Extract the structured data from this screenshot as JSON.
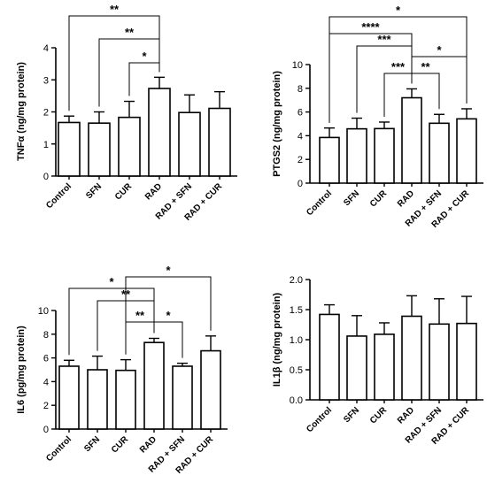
{
  "chart_data": [
    {
      "type": "bar",
      "ylabel": "TNFα (ng/mg protein)",
      "categories": [
        "Control",
        "SFN",
        "CUR",
        "RAD",
        "RAD + SFN",
        "RAD + CUR"
      ],
      "values": [
        1.67,
        1.65,
        1.83,
        2.73,
        1.98,
        2.11
      ],
      "errors": [
        0.2,
        0.35,
        0.5,
        0.35,
        0.55,
        0.52
      ],
      "ylim": [
        0,
        4
      ],
      "yticks": [
        "0",
        "1",
        "2",
        "3",
        "4"
      ],
      "comparisons": [
        {
          "from": "Control",
          "to": "RAD",
          "label": "**"
        },
        {
          "from": "SFN",
          "to": "RAD",
          "label": "**"
        },
        {
          "from": "CUR",
          "to": "RAD",
          "label": "*"
        }
      ]
    },
    {
      "type": "bar",
      "ylabel": "PTGS2 (ng/mg protein)",
      "categories": [
        "Control",
        "SFN",
        "CUR",
        "RAD",
        "RAD + SFN",
        "RAD + CUR"
      ],
      "values": [
        3.85,
        4.58,
        4.6,
        7.2,
        5.05,
        5.42
      ],
      "errors": [
        0.8,
        0.9,
        0.55,
        0.75,
        0.75,
        0.85
      ],
      "ylim": [
        0,
        10
      ],
      "yticks": [
        "0",
        "2",
        "4",
        "6",
        "8",
        "10"
      ],
      "comparisons": [
        {
          "from": "Control",
          "to": "RAD + CUR",
          "label": "*"
        },
        {
          "from": "Control",
          "to": "RAD",
          "label": "****"
        },
        {
          "from": "SFN",
          "to": "RAD",
          "label": "***"
        },
        {
          "from": "RAD",
          "to": "RAD + CUR",
          "label": "*"
        },
        {
          "from": "CUR",
          "to": "RAD",
          "label": "***"
        },
        {
          "from": "RAD",
          "to": "RAD + SFN",
          "label": "**"
        }
      ]
    },
    {
      "type": "bar",
      "ylabel": "IL6 (pg/mg protein)",
      "categories": [
        "Control",
        "SFN",
        "CUR",
        "RAD",
        "RAD + SFN",
        "RAD + CUR"
      ],
      "values": [
        5.3,
        5.0,
        4.95,
        7.3,
        5.3,
        6.6
      ],
      "errors": [
        0.5,
        1.15,
        0.9,
        0.35,
        0.25,
        1.25
      ],
      "ylim": [
        0,
        10
      ],
      "yticks": [
        "0",
        "2",
        "4",
        "6",
        "8",
        "10"
      ],
      "comparisons": [
        {
          "from": "CUR",
          "to": "RAD + CUR",
          "label": "*"
        },
        {
          "from": "Control",
          "to": "RAD",
          "label": "*"
        },
        {
          "from": "SFN",
          "to": "RAD",
          "label": "**"
        },
        {
          "from": "CUR",
          "to": "RAD",
          "label": "**"
        },
        {
          "from": "RAD",
          "to": "RAD + SFN",
          "label": "*"
        }
      ]
    },
    {
      "type": "bar",
      "ylabel": "IL1β (ng/mg protein)",
      "categories": [
        "Control",
        "SFN",
        "CUR",
        "RAD",
        "RAD + SFN",
        "RAD + CUR"
      ],
      "values": [
        1.42,
        1.06,
        1.09,
        1.39,
        1.26,
        1.27
      ],
      "errors": [
        0.16,
        0.34,
        0.19,
        0.34,
        0.42,
        0.45
      ],
      "ylim": [
        0,
        2.0
      ],
      "yticks": [
        "0.0",
        "0.5",
        "1.0",
        "1.5",
        "2.0"
      ],
      "comparisons": []
    }
  ]
}
